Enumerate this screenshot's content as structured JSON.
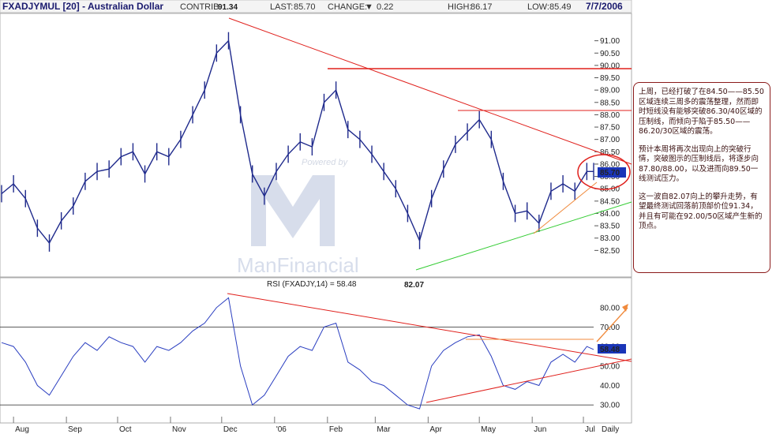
{
  "header": {
    "symbol": "FXADJYMUL [20] - Australian Dollar",
    "contrib_label": "CONTRIB",
    "last_label": "LAST:",
    "last_value": "85.70",
    "change_label": "CHANGE:",
    "change_arrow": "▼",
    "change_value": "0.22",
    "high_label": "HIGH:",
    "high_value": "86.17",
    "low_label": "LOW:",
    "low_value": "85.49",
    "date": "7/7/2006"
  },
  "watermark": {
    "powered_text": "Powered by",
    "brand_text": "ManFinancial"
  },
  "annotation": {
    "paragraphs": [
      "上周，已经打破了在84.50——85.50区域连续三周多的震荡整理，然而即时短线没有能够突破86.30/40区域的压制线，而倾向于陷于85.50——86.20/30区域的震荡。",
      "预计本周将再次出现向上的突破行情，突破图示的压制线后，将逐步向87.80/88.00，以及进而向89.50一线测试压力。",
      "这一波自82.07向上的攀升走势，有望最终测试回落前顶部价位91.34，并且有可能在92.00/50区域产生新的顶点。"
    ]
  },
  "colors": {
    "price_line": "#1f2a8c",
    "trendline_red": "#e0201c",
    "trendline_green": "#33cc33",
    "trendline_orange": "#f08a3c",
    "current_badge": "#1a35b8",
    "high_label": "#d80000",
    "background": "#ffffff"
  },
  "chart_data": [
    {
      "type": "line",
      "name": "price",
      "x": [
        "2005-07-25",
        "2005-08-01",
        "2005-08-08",
        "2005-08-15",
        "2005-08-22",
        "2005-08-29",
        "2005-09-05",
        "2005-09-12",
        "2005-09-19",
        "2005-09-26",
        "2005-10-03",
        "2005-10-10",
        "2005-10-17",
        "2005-10-24",
        "2005-10-31",
        "2005-11-07",
        "2005-11-14",
        "2005-11-21",
        "2005-11-28",
        "2005-12-05",
        "2005-12-12",
        "2005-12-19",
        "2005-12-26",
        "2006-01-02",
        "2006-01-09",
        "2006-01-16",
        "2006-01-23",
        "2006-01-30",
        "2006-02-06",
        "2006-02-13",
        "2006-02-20",
        "2006-02-27",
        "2006-03-06",
        "2006-03-13",
        "2006-03-20",
        "2006-03-27",
        "2006-04-03",
        "2006-04-10",
        "2006-04-17",
        "2006-04-24",
        "2006-05-01",
        "2006-05-08",
        "2006-05-15",
        "2006-05-22",
        "2006-05-29",
        "2006-06-05",
        "2006-06-12",
        "2006-06-19",
        "2006-06-26",
        "2006-07-03",
        "2006-07-07"
      ],
      "values": [
        84.8,
        85.2,
        84.6,
        83.4,
        82.8,
        83.7,
        84.3,
        85.3,
        85.7,
        85.8,
        86.3,
        86.5,
        85.6,
        86.5,
        86.3,
        87.0,
        88.0,
        89.0,
        90.5,
        91.0,
        88.0,
        85.6,
        84.7,
        85.7,
        86.4,
        86.9,
        86.7,
        88.5,
        89.0,
        87.4,
        87.0,
        86.4,
        85.7,
        85.0,
        84.0,
        82.9,
        84.6,
        85.8,
        86.8,
        87.3,
        87.8,
        87.0,
        85.3,
        84.0,
        84.1,
        83.6,
        84.9,
        85.2,
        84.9,
        85.7,
        85.7
      ],
      "title": "FXADJYMUL [20] - Australian Dollar",
      "y_ticks": [
        "82.50",
        "83.00",
        "83.50",
        "84.00",
        "84.50",
        "85.00",
        "85.50",
        "86.00",
        "86.50",
        "87.00",
        "87.50",
        "88.00",
        "88.50",
        "89.00",
        "89.50",
        "90.00",
        "90.50",
        "91.00"
      ],
      "ylim": [
        82.0,
        91.5
      ],
      "annotations": {
        "high": "91.34",
        "low": "82.07",
        "last": "85.70"
      },
      "grid": false
    },
    {
      "type": "line",
      "name": "rsi",
      "label": "RSI (FXADJY,14) = 58.48",
      "x": [
        "2005-07-25",
        "2005-08-01",
        "2005-08-08",
        "2005-08-15",
        "2005-08-22",
        "2005-08-29",
        "2005-09-05",
        "2005-09-12",
        "2005-09-19",
        "2005-09-26",
        "2005-10-03",
        "2005-10-10",
        "2005-10-17",
        "2005-10-24",
        "2005-10-31",
        "2005-11-07",
        "2005-11-14",
        "2005-11-21",
        "2005-11-28",
        "2005-12-05",
        "2005-12-12",
        "2005-12-19",
        "2005-12-26",
        "2006-01-02",
        "2006-01-09",
        "2006-01-16",
        "2006-01-23",
        "2006-01-30",
        "2006-02-06",
        "2006-02-13",
        "2006-02-20",
        "2006-02-27",
        "2006-03-06",
        "2006-03-13",
        "2006-03-20",
        "2006-03-27",
        "2006-04-03",
        "2006-04-10",
        "2006-04-17",
        "2006-04-24",
        "2006-05-01",
        "2006-05-08",
        "2006-05-15",
        "2006-05-22",
        "2006-05-29",
        "2006-06-05",
        "2006-06-12",
        "2006-06-19",
        "2006-06-26",
        "2006-07-03",
        "2006-07-07"
      ],
      "values": [
        62,
        60,
        52,
        40,
        35,
        45,
        55,
        62,
        58,
        65,
        62,
        60,
        52,
        60,
        58,
        62,
        68,
        72,
        80,
        85,
        50,
        30,
        35,
        45,
        55,
        60,
        58,
        70,
        72,
        52,
        48,
        42,
        40,
        35,
        30,
        28,
        50,
        58,
        62,
        65,
        66,
        55,
        40,
        38,
        42,
        40,
        52,
        56,
        52,
        60,
        58.48
      ],
      "y_ticks": [
        "30.00",
        "40.00",
        "50.00",
        "60.00",
        "70.00",
        "80.00"
      ],
      "ylim": [
        24,
        88
      ],
      "last": "58.48",
      "reference_lines": [
        30,
        70
      ]
    }
  ],
  "x_axis_labels": [
    "Aug",
    "Sep",
    "Oct",
    "Nov",
    "Dec",
    "'06",
    "Feb",
    "Mar",
    "Apr",
    "May",
    "Jun",
    "Jul"
  ],
  "x_axis_extra": "Daily"
}
